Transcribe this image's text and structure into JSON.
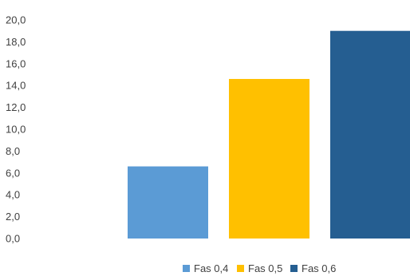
{
  "chart_data": {
    "type": "bar",
    "categories": [
      ""
    ],
    "series": [
      {
        "name": "Fas 0,4",
        "values": [
          6.6
        ],
        "color": "#5b9bd5"
      },
      {
        "name": "Fas 0,5",
        "values": [
          14.6
        ],
        "color": "#ffc000"
      },
      {
        "name": "Fas 0,6",
        "values": [
          19.0
        ],
        "color": "#255e91"
      }
    ],
    "title": "",
    "xlabel": "",
    "ylabel": "",
    "ylim": [
      0,
      20
    ],
    "yticks": [
      "0,0",
      "2,0",
      "4,0",
      "6,0",
      "8,0",
      "10,0",
      "12,0",
      "14,0",
      "16,0",
      "18,0",
      "20,0"
    ],
    "grid": false,
    "legend_position": "bottom"
  }
}
